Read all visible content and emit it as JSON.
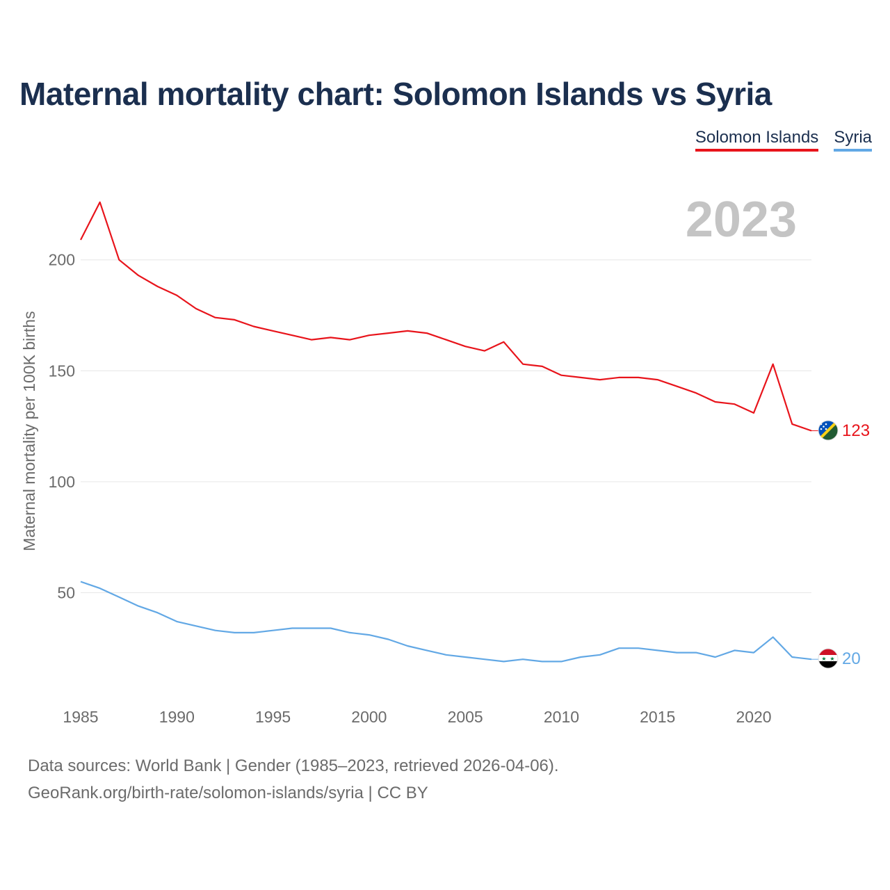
{
  "title": "Maternal mortality chart: Solomon Islands vs Syria",
  "year_label": "2023",
  "footer": {
    "line1": "Data sources: World Bank | Gender (1985–2023, retrieved 2026-04-06).",
    "line2": "GeoRank.org/birth-rate/solomon-islands/syria | CC BY"
  },
  "colors": {
    "title": "#1b2f4f",
    "grid": "#e6e6e6",
    "tick": "#6b6b6b",
    "year_watermark": "#c4c4c4"
  },
  "chart_data": {
    "type": "line",
    "title": "Maternal mortality chart: Solomon Islands vs Syria",
    "xlabel": "",
    "ylabel": "Maternal mortality per 100K births",
    "xlim": [
      1985,
      2023
    ],
    "ylim": [
      0,
      230
    ],
    "grid": true,
    "legend_position": "top-right",
    "x_ticks": [
      1985,
      1990,
      1995,
      2000,
      2005,
      2010,
      2015,
      2020
    ],
    "y_ticks": [
      50,
      100,
      150,
      200
    ],
    "x": [
      1985,
      1986,
      1987,
      1988,
      1989,
      1990,
      1991,
      1992,
      1993,
      1994,
      1995,
      1996,
      1997,
      1998,
      1999,
      2000,
      2001,
      2002,
      2003,
      2004,
      2005,
      2006,
      2007,
      2008,
      2009,
      2010,
      2011,
      2012,
      2013,
      2014,
      2015,
      2016,
      2017,
      2018,
      2019,
      2020,
      2021,
      2022,
      2023
    ],
    "series": [
      {
        "name": "Solomon Islands",
        "color": "#e8141b",
        "flag_icon": "solomon-islands-flag-icon",
        "end_label": "123",
        "values": [
          209,
          226,
          200,
          193,
          188,
          184,
          178,
          174,
          173,
          170,
          168,
          166,
          164,
          165,
          164,
          166,
          167,
          168,
          167,
          164,
          161,
          159,
          163,
          153,
          152,
          148,
          147,
          146,
          147,
          147,
          146,
          143,
          140,
          136,
          135,
          131,
          153,
          126,
          123
        ]
      },
      {
        "name": "Syria",
        "color": "#62a8e5",
        "flag_icon": "syria-flag-icon",
        "end_label": "20",
        "values": [
          55,
          52,
          48,
          44,
          41,
          37,
          35,
          33,
          32,
          32,
          33,
          34,
          34,
          34,
          32,
          31,
          29,
          26,
          24,
          22,
          21,
          20,
          19,
          20,
          19,
          19,
          21,
          22,
          25,
          25,
          24,
          23,
          23,
          21,
          24,
          23,
          30,
          21,
          20
        ]
      }
    ]
  }
}
